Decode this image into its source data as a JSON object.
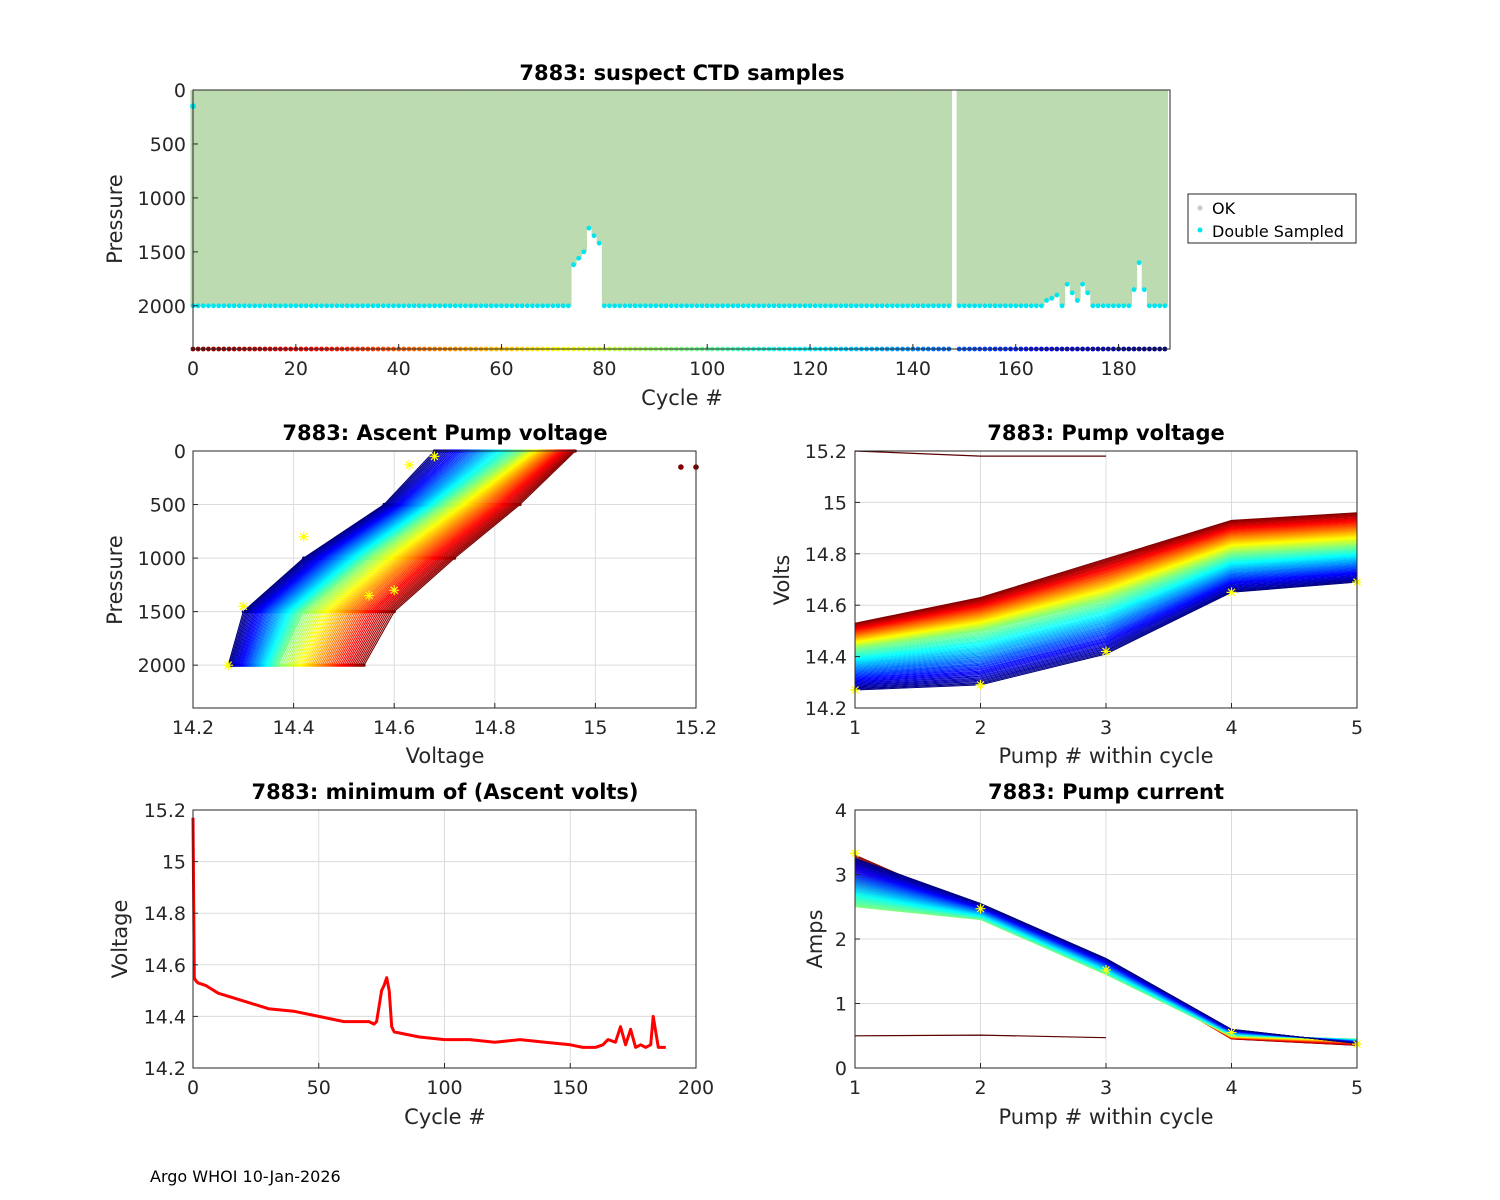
{
  "footer": "Argo WHOI 10-Jan-2026",
  "chart_data": [
    {
      "id": "ctd",
      "type": "scatter",
      "title": "7883: suspect CTD samples",
      "xlabel": "Cycle #",
      "ylabel": "Pressure",
      "xlim": [
        0,
        190
      ],
      "ylim": [
        0,
        2400
      ],
      "y_reversed": true,
      "xticks": [
        0,
        20,
        40,
        60,
        80,
        100,
        120,
        140,
        160,
        180
      ],
      "yticks": [
        0,
        500,
        1000,
        1500,
        2000
      ],
      "legend": {
        "position": "outside-right",
        "entries": [
          "OK",
          "Double Sampled"
        ]
      },
      "ok_fill_color": "#bddbb0",
      "double_sampled_color": "#00e5ee",
      "ok_color": "#c8c8c8",
      "missing_cycle": 148,
      "profile_depth_default": 2000,
      "shallow_profiles": [
        {
          "cycle": 74,
          "max_pressure": 1620
        },
        {
          "cycle": 75,
          "max_pressure": 1560
        },
        {
          "cycle": 76,
          "max_pressure": 1500
        },
        {
          "cycle": 77,
          "max_pressure": 1280
        },
        {
          "cycle": 78,
          "max_pressure": 1350
        },
        {
          "cycle": 79,
          "max_pressure": 1420
        },
        {
          "cycle": 166,
          "max_pressure": 1950
        },
        {
          "cycle": 167,
          "max_pressure": 1930
        },
        {
          "cycle": 168,
          "max_pressure": 1900
        },
        {
          "cycle": 170,
          "max_pressure": 1800
        },
        {
          "cycle": 171,
          "max_pressure": 1880
        },
        {
          "cycle": 172,
          "max_pressure": 1950
        },
        {
          "cycle": 173,
          "max_pressure": 1800
        },
        {
          "cycle": 174,
          "max_pressure": 1880
        },
        {
          "cycle": 183,
          "max_pressure": 1850
        },
        {
          "cycle": 184,
          "max_pressure": 1600
        },
        {
          "cycle": 185,
          "max_pressure": 1850
        }
      ],
      "surface_double_sampled": [
        {
          "cycle": 0,
          "pressure": 150
        }
      ],
      "colorbar_row_pressure": 2400
    },
    {
      "id": "ascent",
      "type": "line",
      "title": "7883: Ascent Pump voltage",
      "xlabel": "Voltage",
      "ylabel": "Pressure",
      "xlim": [
        14.2,
        15.2
      ],
      "ylim": [
        0,
        2400
      ],
      "y_reversed": true,
      "xticks": [
        14.2,
        14.4,
        14.6,
        14.8,
        15,
        15.2
      ],
      "yticks": [
        0,
        500,
        1000,
        1500,
        2000
      ],
      "pressure_levels": [
        2000,
        1500,
        1000,
        500,
        0
      ],
      "voltage_profile_first_cycle": [
        14.54,
        14.6,
        14.72,
        14.85,
        14.96
      ],
      "voltage_profile_mid_cycle": [
        14.37,
        14.42,
        14.55,
        14.7,
        14.85
      ],
      "voltage_profile_last_cycle": [
        14.27,
        14.3,
        14.42,
        14.58,
        14.68
      ],
      "outlier_points": [
        {
          "voltage": 15.17,
          "pressure": 150
        },
        {
          "voltage": 15.2,
          "pressure": 150
        }
      ],
      "yellow_markers": [
        {
          "voltage": 14.27,
          "pressure": 2000
        },
        {
          "voltage": 14.3,
          "pressure": 1450
        },
        {
          "voltage": 14.42,
          "pressure": 800
        },
        {
          "voltage": 14.63,
          "pressure": 130
        },
        {
          "voltage": 14.68,
          "pressure": 50
        },
        {
          "voltage": 14.55,
          "pressure": 1350
        },
        {
          "voltage": 14.6,
          "pressure": 1300
        }
      ]
    },
    {
      "id": "pumpv",
      "type": "line",
      "title": "7883: Pump voltage",
      "xlabel": "Pump # within cycle",
      "ylabel": "Volts",
      "xlim": [
        1,
        5
      ],
      "ylim": [
        14.2,
        15.2
      ],
      "xticks": [
        1,
        2,
        3,
        4,
        5
      ],
      "yticks": [
        14.2,
        14.4,
        14.6,
        14.8,
        15,
        15.2
      ],
      "x": [
        1,
        2,
        3,
        4,
        5
      ],
      "series_first_cycle": [
        14.53,
        14.63,
        14.78,
        14.93,
        14.96
      ],
      "series_mid_cycle": [
        14.43,
        14.5,
        14.62,
        14.8,
        14.83
      ],
      "series_last_cycle": [
        14.27,
        14.29,
        14.41,
        14.65,
        14.69
      ],
      "outlier_series": [
        {
          "x": [
            1,
            2,
            3
          ],
          "values": [
            15.2,
            15.18,
            15.18
          ]
        }
      ],
      "yellow_markers": [
        {
          "x": 1,
          "value": 14.27
        },
        {
          "x": 2,
          "value": 14.29
        },
        {
          "x": 3,
          "value": 14.42
        },
        {
          "x": 4,
          "value": 14.65
        },
        {
          "x": 5,
          "value": 14.69
        }
      ]
    },
    {
      "id": "minv",
      "type": "line",
      "title": "7883: minimum of (Ascent volts)",
      "xlabel": "Cycle #",
      "ylabel": "Voltage",
      "xlim": [
        0,
        200
      ],
      "ylim": [
        14.2,
        15.2
      ],
      "xticks": [
        0,
        50,
        100,
        150,
        200
      ],
      "yticks": [
        14.2,
        14.4,
        14.6,
        14.8,
        15,
        15.2
      ],
      "line_color": "#ff0000",
      "x": [
        0,
        0.5,
        1,
        2,
        5,
        10,
        20,
        30,
        40,
        50,
        60,
        70,
        72,
        73,
        74,
        75,
        76,
        77,
        78,
        79,
        80,
        85,
        90,
        100,
        110,
        120,
        130,
        140,
        150,
        155,
        160,
        163,
        165,
        168,
        170,
        172,
        174,
        176,
        178,
        180,
        182,
        183,
        185,
        188
      ],
      "values": [
        15.17,
        14.55,
        14.54,
        14.53,
        14.52,
        14.49,
        14.46,
        14.43,
        14.42,
        14.4,
        14.38,
        14.38,
        14.37,
        14.38,
        14.44,
        14.5,
        14.52,
        14.55,
        14.5,
        14.36,
        14.34,
        14.33,
        14.32,
        14.31,
        14.31,
        14.3,
        14.31,
        14.3,
        14.29,
        14.28,
        14.28,
        14.29,
        14.31,
        14.3,
        14.36,
        14.29,
        14.35,
        14.28,
        14.29,
        14.28,
        14.29,
        14.4,
        14.28,
        14.28
      ]
    },
    {
      "id": "pumpc",
      "type": "line",
      "title": "7883: Pump current",
      "xlabel": "Pump # within cycle",
      "ylabel": "Amps",
      "xlim": [
        1,
        5
      ],
      "ylim": [
        0,
        4
      ],
      "xticks": [
        1,
        2,
        3,
        4,
        5
      ],
      "yticks": [
        0,
        1,
        2,
        3,
        4
      ],
      "x": [
        1,
        2,
        3,
        4,
        5
      ],
      "series_first_cycle": [
        3.3,
        2.45,
        1.6,
        0.45,
        0.35
      ],
      "series_mid_cycle": [
        2.5,
        2.3,
        1.45,
        0.5,
        0.45
      ],
      "series_last_cycle": [
        3.25,
        2.55,
        1.7,
        0.6,
        0.38
      ],
      "outlier_series": [
        {
          "x": [
            1,
            2,
            3
          ],
          "values": [
            0.5,
            0.51,
            0.47
          ]
        }
      ],
      "yellow_markers": [
        {
          "x": 1,
          "value": 3.33
        },
        {
          "x": 2,
          "value": 2.47
        },
        {
          "x": 3,
          "value": 1.52
        },
        {
          "x": 4,
          "value": 0.55
        },
        {
          "x": 5,
          "value": 0.37
        }
      ]
    }
  ]
}
